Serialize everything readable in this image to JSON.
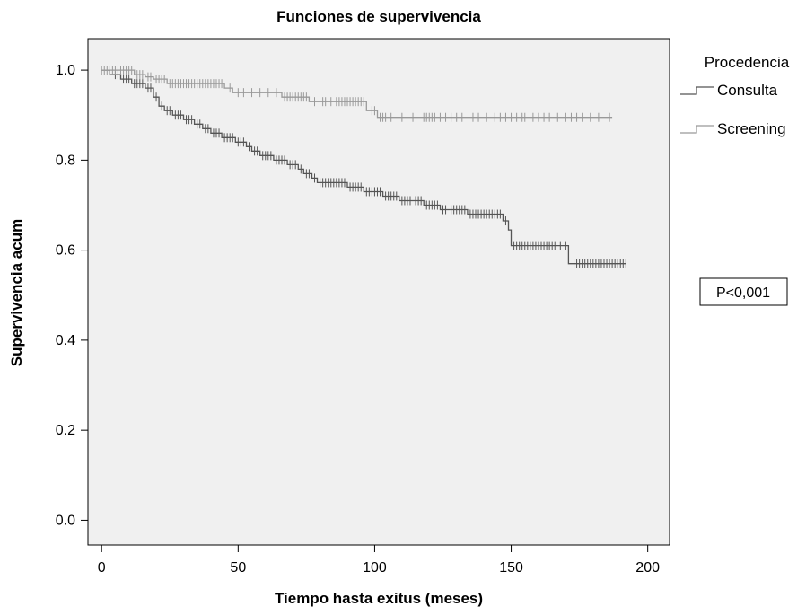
{
  "chart_data": {
    "type": "line",
    "subtype": "kaplan-meier",
    "title": "Funciones de supervivencia",
    "xlabel": "Tiempo hasta exitus (meses)",
    "ylabel": "Supervivencia acum",
    "xlim": [
      -5,
      208
    ],
    "ylim": [
      -0.055,
      1.07
    ],
    "xticks": [
      0,
      50,
      100,
      150,
      200
    ],
    "yticks": [
      0.0,
      0.2,
      0.4,
      0.6,
      0.8,
      1.0
    ],
    "xtick_labels": [
      "0",
      "50",
      "100",
      "150",
      "200"
    ],
    "ytick_labels": [
      "0.0",
      "0.2",
      "0.4",
      "0.6",
      "0.8",
      "1.0"
    ],
    "grid": false,
    "background": "#f0f0f0",
    "legend": {
      "title": "Procedencia",
      "position": "right",
      "entries": [
        "Consulta",
        "Screening"
      ]
    },
    "annotation": "P<0,001",
    "series": [
      {
        "name": "Consulta",
        "color": "#555555",
        "steps": [
          [
            0,
            1.0
          ],
          [
            3,
            0.99
          ],
          [
            7,
            0.98
          ],
          [
            11,
            0.97
          ],
          [
            16,
            0.96
          ],
          [
            19,
            0.94
          ],
          [
            21,
            0.92
          ],
          [
            23,
            0.91
          ],
          [
            26,
            0.9
          ],
          [
            30,
            0.89
          ],
          [
            34,
            0.88
          ],
          [
            37,
            0.87
          ],
          [
            40,
            0.86
          ],
          [
            44,
            0.85
          ],
          [
            49,
            0.84
          ],
          [
            53,
            0.83
          ],
          [
            55,
            0.82
          ],
          [
            58,
            0.81
          ],
          [
            63,
            0.8
          ],
          [
            68,
            0.79
          ],
          [
            72,
            0.78
          ],
          [
            74,
            0.77
          ],
          [
            77,
            0.76
          ],
          [
            79,
            0.75
          ],
          [
            90,
            0.74
          ],
          [
            96,
            0.73
          ],
          [
            103,
            0.72
          ],
          [
            109,
            0.71
          ],
          [
            118,
            0.7
          ],
          [
            124,
            0.69
          ],
          [
            134,
            0.68
          ],
          [
            147,
            0.665
          ],
          [
            149,
            0.645
          ],
          [
            150,
            0.61
          ],
          [
            171,
            0.57
          ],
          [
            192,
            0.57
          ]
        ],
        "censored": [
          5,
          6,
          8,
          9,
          10,
          12,
          13,
          14,
          15,
          17,
          18,
          20,
          22,
          24,
          25,
          27,
          28,
          29,
          31,
          32,
          33,
          35,
          36,
          38,
          39,
          41,
          42,
          43,
          45,
          46,
          47,
          48,
          50,
          51,
          52,
          54,
          56,
          57,
          59,
          60,
          61,
          62,
          64,
          65,
          66,
          67,
          69,
          70,
          71,
          73,
          75,
          76,
          78,
          80,
          81,
          82,
          83,
          84,
          85,
          86,
          87,
          88,
          89,
          91,
          92,
          93,
          94,
          95,
          97,
          98,
          99,
          100,
          101,
          102,
          104,
          105,
          106,
          107,
          108,
          110,
          111,
          112,
          113,
          115,
          116,
          117,
          119,
          120,
          121,
          122,
          123,
          125,
          126,
          128,
          129,
          130,
          131,
          132,
          133,
          135,
          136,
          137,
          138,
          139,
          140,
          141,
          142,
          143,
          144,
          145,
          146,
          148,
          151,
          152,
          153,
          154,
          155,
          156,
          157,
          158,
          159,
          160,
          161,
          162,
          163,
          164,
          165,
          166,
          168,
          170,
          173,
          174,
          175,
          176,
          177,
          178,
          179,
          180,
          181,
          182,
          183,
          184,
          185,
          186,
          187,
          188,
          189,
          190,
          191,
          192
        ]
      },
      {
        "name": "Screening",
        "color": "#999999",
        "steps": [
          [
            0,
            1.0
          ],
          [
            12,
            0.99
          ],
          [
            16,
            0.985
          ],
          [
            19,
            0.98
          ],
          [
            24,
            0.97
          ],
          [
            45,
            0.96
          ],
          [
            48,
            0.95
          ],
          [
            66,
            0.94
          ],
          [
            76,
            0.93
          ],
          [
            97,
            0.91
          ],
          [
            101,
            0.895
          ],
          [
            187,
            0.895
          ]
        ],
        "censored": [
          0,
          1,
          2,
          3,
          4,
          5,
          6,
          7,
          8,
          9,
          10,
          11,
          13,
          14,
          15,
          17,
          18,
          20,
          21,
          22,
          23,
          25,
          26,
          27,
          28,
          29,
          30,
          31,
          32,
          33,
          34,
          35,
          36,
          37,
          38,
          39,
          40,
          41,
          42,
          43,
          44,
          47,
          50,
          52,
          55,
          58,
          61,
          64,
          67,
          68,
          69,
          70,
          71,
          72,
          73,
          74,
          75,
          78,
          81,
          82,
          84,
          86,
          87,
          88,
          89,
          90,
          91,
          92,
          93,
          94,
          95,
          96,
          99,
          100,
          102,
          103,
          104,
          106,
          110,
          114,
          118,
          119,
          120,
          121,
          122,
          124,
          126,
          128,
          130,
          132,
          136,
          138,
          141,
          144,
          146,
          148,
          150,
          152,
          154,
          155,
          158,
          160,
          162,
          164,
          167,
          170,
          172,
          174,
          176,
          179,
          182,
          186
        ]
      }
    ]
  }
}
